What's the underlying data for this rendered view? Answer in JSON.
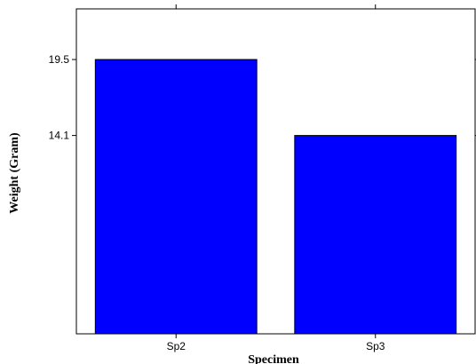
{
  "chart_data": {
    "type": "bar",
    "categories": [
      "Sp2",
      "Sp3"
    ],
    "values": [
      19.5,
      14.1
    ],
    "yticks": [
      19.5,
      14.1
    ],
    "ylim": [
      0,
      23.1
    ],
    "xlabel": "Specimen",
    "ylabel": "Weight (Gram)",
    "grid": false,
    "bar_color": "#0000ff",
    "bar_edge_color": "#000000"
  }
}
